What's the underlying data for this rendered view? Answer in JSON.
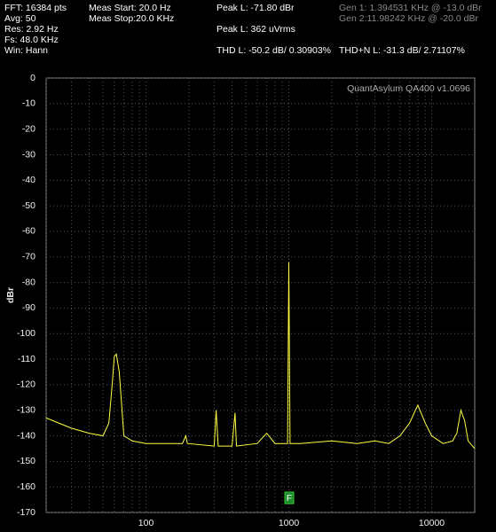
{
  "chart_data": {
    "type": "line",
    "ylabel": "dBr",
    "annotations": [
      "FFT: 16384 pts",
      "Avg: 50",
      "Res: 2.92 Hz",
      "Fs: 48.0 KHz",
      "Win: Hann",
      "Meas Start: 20.0 Hz",
      "Meas Stop:20.0 KHz",
      "Peak L: -71.80 dBr",
      "Peak L: 362 uVrms",
      "THD L: -50.2 dB/ 0.30903%",
      "Gen 1: 1.394531 KHz @ -13.0  dBr",
      "Gen 2:11.98242 KHz @ -20.0  dBr",
      "THD+N L: -31.3 dB/ 2.71107%",
      "QuantAsylum QA400 v1.0696",
      "F"
    ],
    "x": [
      20,
      30,
      40,
      50,
      55,
      58,
      60,
      62,
      65,
      70,
      80,
      100,
      150,
      180,
      190,
      195,
      300,
      310,
      320,
      400,
      420,
      430,
      600,
      700,
      800,
      980,
      1000,
      1020,
      1200,
      2000,
      3000,
      4000,
      5000,
      6000,
      7000,
      8000,
      9000,
      10000,
      12000,
      14000,
      15000,
      16000,
      17000,
      18000,
      20000
    ],
    "values": [
      -133,
      -137,
      -139,
      -140,
      -135,
      -120,
      -109,
      -108,
      -115,
      -140,
      -142,
      -143,
      -143,
      -143,
      -140,
      -143,
      -144,
      -130,
      -144,
      -144,
      -131,
      -144,
      -143,
      -139,
      -143,
      -143,
      -72,
      -143,
      -143,
      -142,
      -143,
      -142,
      -143,
      -140,
      -135,
      -128,
      -135,
      -140,
      -143,
      -142,
      -139,
      -130,
      -134,
      -142,
      -145
    ],
    "color": "#ffff40",
    "xscale": "log",
    "xlim": [
      20,
      20000
    ],
    "xticks": [
      100,
      1000,
      10000
    ],
    "xgrid_minor": [
      20,
      30,
      40,
      50,
      60,
      70,
      80,
      90,
      200,
      300,
      400,
      500,
      600,
      700,
      800,
      900,
      2000,
      3000,
      4000,
      5000,
      6000,
      7000,
      8000,
      9000
    ],
    "ylim": [
      -170,
      0
    ],
    "yticks": [
      0,
      -10,
      -20,
      -30,
      -40,
      -50,
      -60,
      -70,
      -80,
      -90,
      -100,
      -110,
      -120,
      -130,
      -140,
      -150,
      -160,
      -170
    ],
    "grid": true
  }
}
